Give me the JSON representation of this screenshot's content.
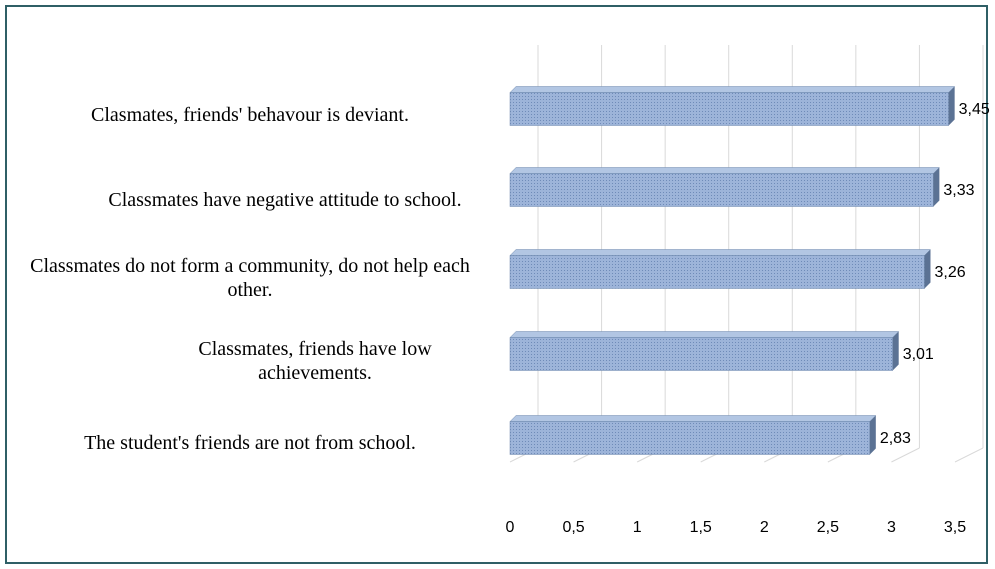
{
  "chart_data": {
    "type": "bar",
    "orientation": "horizontal",
    "style": "3d",
    "categories": [
      "Clasmates, friends' behavour is deviant.",
      "Classmates have negative attitude to school.",
      "Classmates do not form a community, do not help each other.",
      "Classmates, friends have low achievements.",
      "The student's friends are not from school."
    ],
    "values": [
      3.45,
      3.33,
      3.26,
      3.01,
      2.83
    ],
    "data_labels": [
      "3,45",
      "3,33",
      "3,26",
      "3,01",
      "2,83"
    ],
    "xlim": [
      0,
      3.5
    ],
    "x_ticks": [
      0,
      0.5,
      1,
      1.5,
      2,
      2.5,
      3,
      3.5
    ],
    "x_tick_labels": [
      "0",
      "0,5",
      "1",
      "1,5",
      "2",
      "2,5",
      "3",
      "3,5"
    ],
    "grid": true,
    "bar_color": "#8ea9d3",
    "bar_top_color": "#b2c6e3",
    "bar_side_color": "#5b7294",
    "border_color": "#2f5f66"
  }
}
